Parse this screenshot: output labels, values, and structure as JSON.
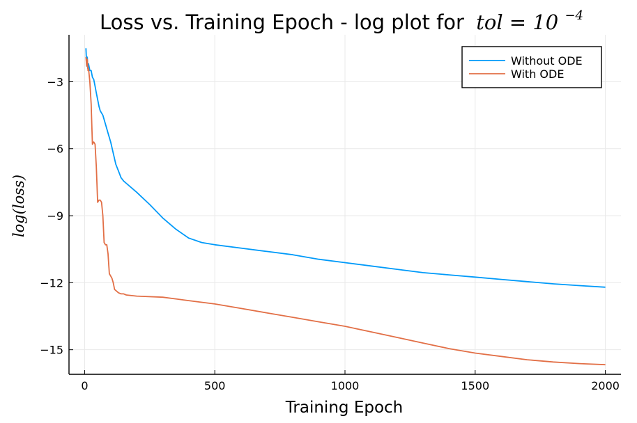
{
  "chart_data": {
    "type": "line",
    "title": "Loss vs. Training Epoch - log plot for",
    "title_math": {
      "base": "tol = 10",
      "exponent": "−4"
    },
    "xlabel": "Training Epoch",
    "ylabel": "log(loss)",
    "xlim": [
      -60,
      2060
    ],
    "ylim": [
      -16.1,
      -0.9
    ],
    "xticks": [
      0,
      500,
      1000,
      1500,
      2000
    ],
    "xtick_labels": [
      "0",
      "500",
      "1000",
      "1500",
      "2000"
    ],
    "yticks": [
      -3,
      -6,
      -9,
      -12,
      -15
    ],
    "ytick_labels": [
      "−3",
      "−6",
      "−9",
      "−12",
      "−15"
    ],
    "grid": true,
    "legend_position": "top-right",
    "series": [
      {
        "name": "Without ODE",
        "color": "#009af9",
        "x": [
          5,
          8,
          10,
          12,
          15,
          20,
          25,
          30,
          35,
          40,
          45,
          50,
          55,
          60,
          65,
          70,
          80,
          90,
          100,
          110,
          120,
          130,
          140,
          150,
          160,
          175,
          200,
          250,
          300,
          350,
          400,
          450,
          500,
          600,
          700,
          800,
          900,
          1000,
          1100,
          1200,
          1300,
          1400,
          1500,
          1600,
          1700,
          1800,
          1900,
          2000
        ],
        "y": [
          -1.5,
          -2.3,
          -1.9,
          -2.4,
          -2.2,
          -2.5,
          -2.5,
          -2.8,
          -2.9,
          -3.2,
          -3.5,
          -3.8,
          -4.1,
          -4.3,
          -4.4,
          -4.5,
          -4.9,
          -5.3,
          -5.7,
          -6.2,
          -6.7,
          -7.0,
          -7.3,
          -7.45,
          -7.55,
          -7.7,
          -7.95,
          -8.5,
          -9.1,
          -9.6,
          -10.0,
          -10.2,
          -10.3,
          -10.45,
          -10.6,
          -10.75,
          -10.95,
          -11.1,
          -11.25,
          -11.4,
          -11.55,
          -11.65,
          -11.75,
          -11.85,
          -11.95,
          -12.05,
          -12.13,
          -12.2
        ]
      },
      {
        "name": "With ODE",
        "color": "#e26f46",
        "x": [
          5,
          8,
          10,
          13,
          15,
          20,
          25,
          30,
          35,
          40,
          45,
          50,
          55,
          60,
          65,
          70,
          75,
          80,
          85,
          90,
          95,
          100,
          105,
          110,
          115,
          120,
          130,
          140,
          150,
          160,
          200,
          300,
          400,
          500,
          600,
          700,
          800,
          900,
          1000,
          1100,
          1200,
          1300,
          1400,
          1500,
          1600,
          1700,
          1800,
          1900,
          2000
        ],
        "y": [
          -1.9,
          -2.3,
          -2.0,
          -2.5,
          -2.4,
          -3.0,
          -4.0,
          -5.8,
          -5.7,
          -5.8,
          -6.8,
          -8.4,
          -8.3,
          -8.3,
          -8.4,
          -9.0,
          -10.2,
          -10.3,
          -10.3,
          -10.7,
          -11.6,
          -11.7,
          -11.8,
          -12.0,
          -12.3,
          -12.35,
          -12.45,
          -12.5,
          -12.5,
          -12.55,
          -12.6,
          -12.65,
          -12.8,
          -12.95,
          -13.15,
          -13.35,
          -13.55,
          -13.75,
          -13.95,
          -14.2,
          -14.45,
          -14.7,
          -14.95,
          -15.15,
          -15.3,
          -15.45,
          -15.55,
          -15.62,
          -15.67
        ]
      }
    ]
  }
}
